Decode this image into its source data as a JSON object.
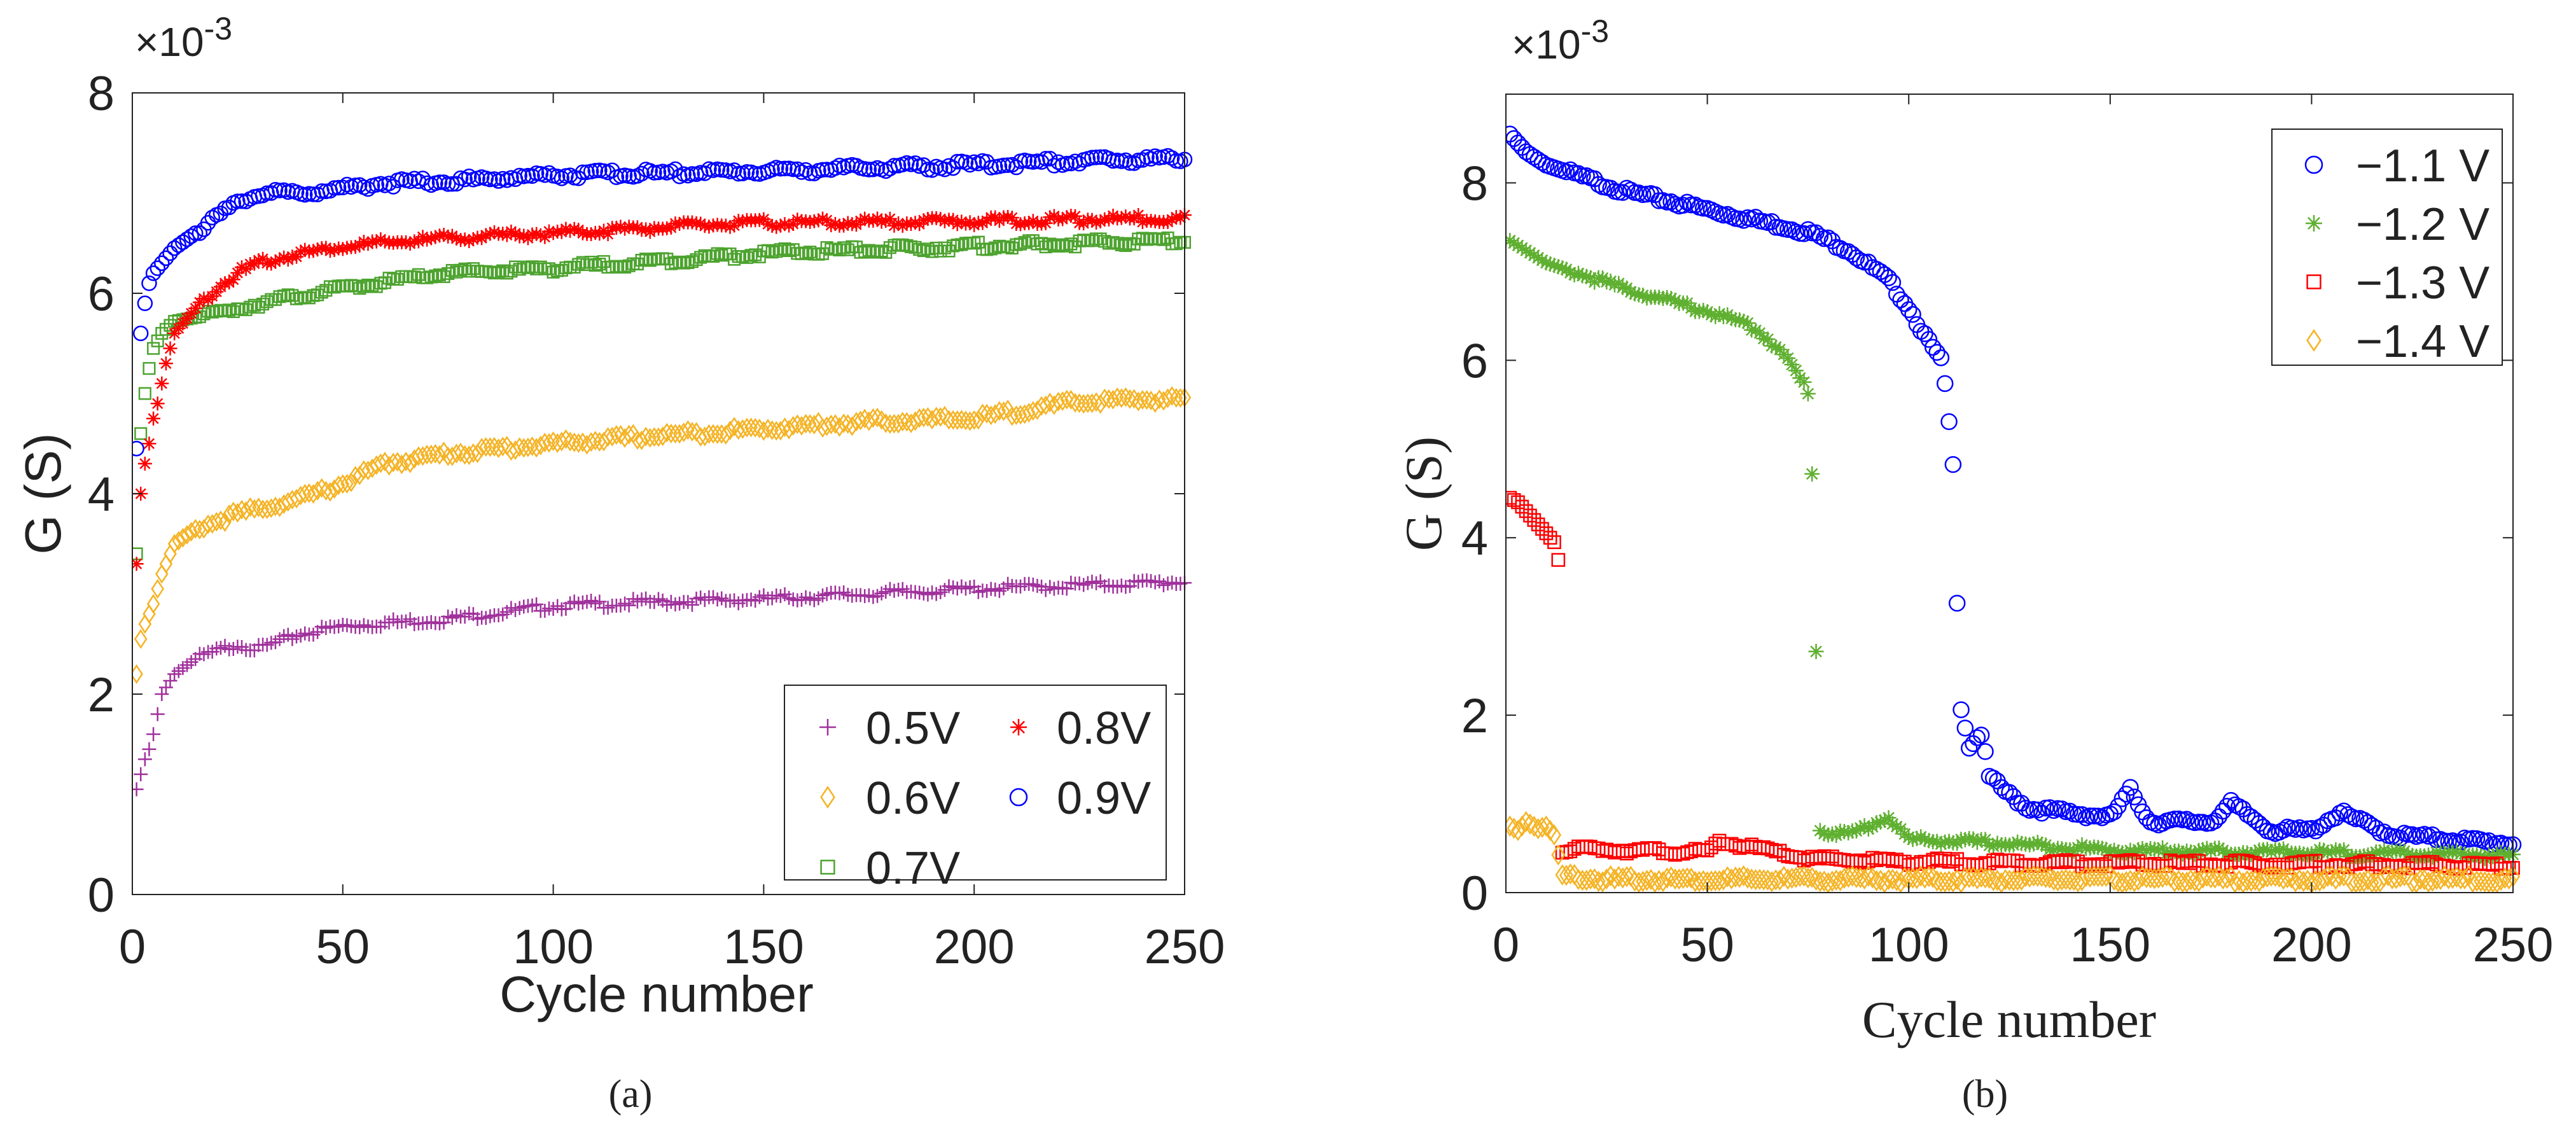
{
  "captions": {
    "a": "(a)",
    "b": "(b)"
  },
  "chart_data": [
    {
      "type": "scatter",
      "panel": "a",
      "title": "",
      "xlabel": "Cycle number",
      "ylabel": "G (S)",
      "y_multiplier": "×10",
      "y_multiplier_exp": "-3",
      "xlim": [
        0,
        250
      ],
      "ylim": [
        0,
        8
      ],
      "xticks": [
        0,
        50,
        100,
        150,
        200,
        250
      ],
      "yticks": [
        0,
        2,
        4,
        6,
        8
      ],
      "grid": false,
      "legend_placement": "bottom-right",
      "series": [
        {
          "name": "0.5V",
          "marker": "plus",
          "color": "#A0309C",
          "x": [
            1,
            2,
            3,
            4,
            5,
            7,
            10,
            15,
            25,
            30,
            40,
            50,
            75,
            100,
            125,
            150,
            175,
            200,
            250
          ],
          "y": [
            1.05,
            1.2,
            1.35,
            1.45,
            1.6,
            2.0,
            2.2,
            2.35,
            2.5,
            2.45,
            2.6,
            2.68,
            2.75,
            2.88,
            2.92,
            2.95,
            3.0,
            3.05,
            3.12
          ]
        },
        {
          "name": "0.6V",
          "marker": "diamond",
          "color": "#F5B324",
          "x": [
            1,
            2,
            3,
            5,
            7,
            10,
            15,
            25,
            40,
            50,
            60,
            75,
            100,
            125,
            150,
            175,
            200,
            225,
            250
          ],
          "y": [
            2.2,
            2.55,
            2.7,
            2.9,
            3.2,
            3.5,
            3.65,
            3.8,
            3.95,
            4.1,
            4.3,
            4.4,
            4.5,
            4.58,
            4.65,
            4.72,
            4.75,
            4.92,
            4.95
          ]
        },
        {
          "name": "0.7V",
          "marker": "square",
          "color": "#4DA32F",
          "x": [
            1,
            2,
            3,
            4,
            5,
            7,
            10,
            20,
            30,
            50,
            75,
            100,
            125,
            150,
            200,
            250
          ],
          "y": [
            3.4,
            4.6,
            5.0,
            5.25,
            5.45,
            5.6,
            5.72,
            5.8,
            5.9,
            6.05,
            6.2,
            6.25,
            6.32,
            6.4,
            6.47,
            6.53
          ]
        },
        {
          "name": "0.8V",
          "marker": "asterisk",
          "color": "#FF0000",
          "x": [
            1,
            2,
            3,
            4,
            5,
            6,
            8,
            10,
            15,
            20,
            25,
            30,
            40,
            50,
            75,
            100,
            135,
            150,
            200,
            250
          ],
          "y": [
            3.3,
            4.0,
            4.3,
            4.5,
            4.75,
            4.9,
            5.3,
            5.6,
            5.85,
            6.05,
            6.2,
            6.3,
            6.4,
            6.47,
            6.55,
            6.6,
            6.68,
            6.7,
            6.72,
            6.75
          ]
        },
        {
          "name": "0.9V",
          "marker": "circle",
          "color": "#0000FF",
          "x": [
            1,
            2,
            3,
            4,
            5,
            7,
            10,
            15,
            20,
            25,
            30,
            40,
            50,
            60,
            75,
            100,
            125,
            150,
            175,
            200,
            225,
            250
          ],
          "y": [
            4.45,
            5.6,
            5.9,
            6.1,
            6.2,
            6.3,
            6.45,
            6.6,
            6.75,
            6.9,
            7.0,
            7.0,
            7.05,
            7.1,
            7.12,
            7.18,
            7.2,
            7.22,
            7.25,
            7.28,
            7.32,
            7.35
          ]
        }
      ]
    },
    {
      "type": "scatter",
      "panel": "b",
      "title": "",
      "xlabel": "Cycle number",
      "ylabel": "G (S)",
      "y_multiplier": "×10",
      "y_multiplier_exp": "-3",
      "xlim": [
        0,
        250
      ],
      "ylim": [
        0,
        9
      ],
      "xticks": [
        0,
        50,
        100,
        150,
        200,
        250
      ],
      "yticks": [
        0,
        2,
        4,
        6,
        8
      ],
      "grid": false,
      "legend_placement": "top-right",
      "series": [
        {
          "name": "−1.1 V",
          "marker": "circle",
          "color": "#0000FF",
          "x": [
            1,
            5,
            10,
            20,
            30,
            50,
            75,
            85,
            95,
            100,
            105,
            108,
            109,
            110,
            111,
            112,
            113,
            115,
            118,
            120,
            125,
            130,
            140,
            150,
            155,
            160,
            175,
            180,
            190,
            200,
            207,
            220,
            250
          ],
          "y": [
            8.55,
            8.35,
            8.2,
            8.05,
            7.9,
            7.7,
            7.45,
            7.25,
            6.9,
            6.6,
            6.2,
            6.0,
            5.7,
            5.3,
            4.8,
            3.3,
            2.1,
            1.65,
            1.8,
            1.3,
            1.1,
            0.95,
            0.9,
            0.85,
            1.15,
            0.8,
            0.8,
            1.0,
            0.7,
            0.7,
            0.9,
            0.65,
            0.55
          ]
        },
        {
          "name": "−1.2 V",
          "marker": "asterisk",
          "color": "#5FB030",
          "x": [
            1,
            10,
            20,
            30,
            50,
            60,
            65,
            70,
            73,
            75,
            76,
            78,
            85,
            95,
            100,
            125,
            150,
            200,
            250
          ],
          "y": [
            7.35,
            7.1,
            6.95,
            6.8,
            6.55,
            6.4,
            6.25,
            6.0,
            5.8,
            5.65,
            4.75,
            0.7,
            0.65,
            0.85,
            0.6,
            0.55,
            0.48,
            0.45,
            0.42
          ]
        },
        {
          "name": "−1.3 V",
          "marker": "square",
          "color": "#FF0000",
          "x": [
            1,
            3,
            5,
            8,
            10,
            12,
            13,
            14,
            20,
            30,
            50,
            53,
            75,
            100,
            150,
            200,
            250
          ],
          "y": [
            4.45,
            4.4,
            4.3,
            4.15,
            4.05,
            3.95,
            3.75,
            0.45,
            0.5,
            0.48,
            0.45,
            0.58,
            0.38,
            0.35,
            0.33,
            0.32,
            0.3
          ]
        },
        {
          "name": "−1.4 V",
          "marker": "diamond",
          "color": "#F5B324",
          "x": [
            1,
            3,
            5,
            8,
            10,
            12,
            14,
            25,
            50,
            100,
            150,
            200,
            250
          ],
          "y": [
            0.75,
            0.7,
            0.8,
            0.72,
            0.75,
            0.65,
            0.2,
            0.15,
            0.15,
            0.15,
            0.15,
            0.15,
            0.15
          ]
        }
      ]
    }
  ]
}
